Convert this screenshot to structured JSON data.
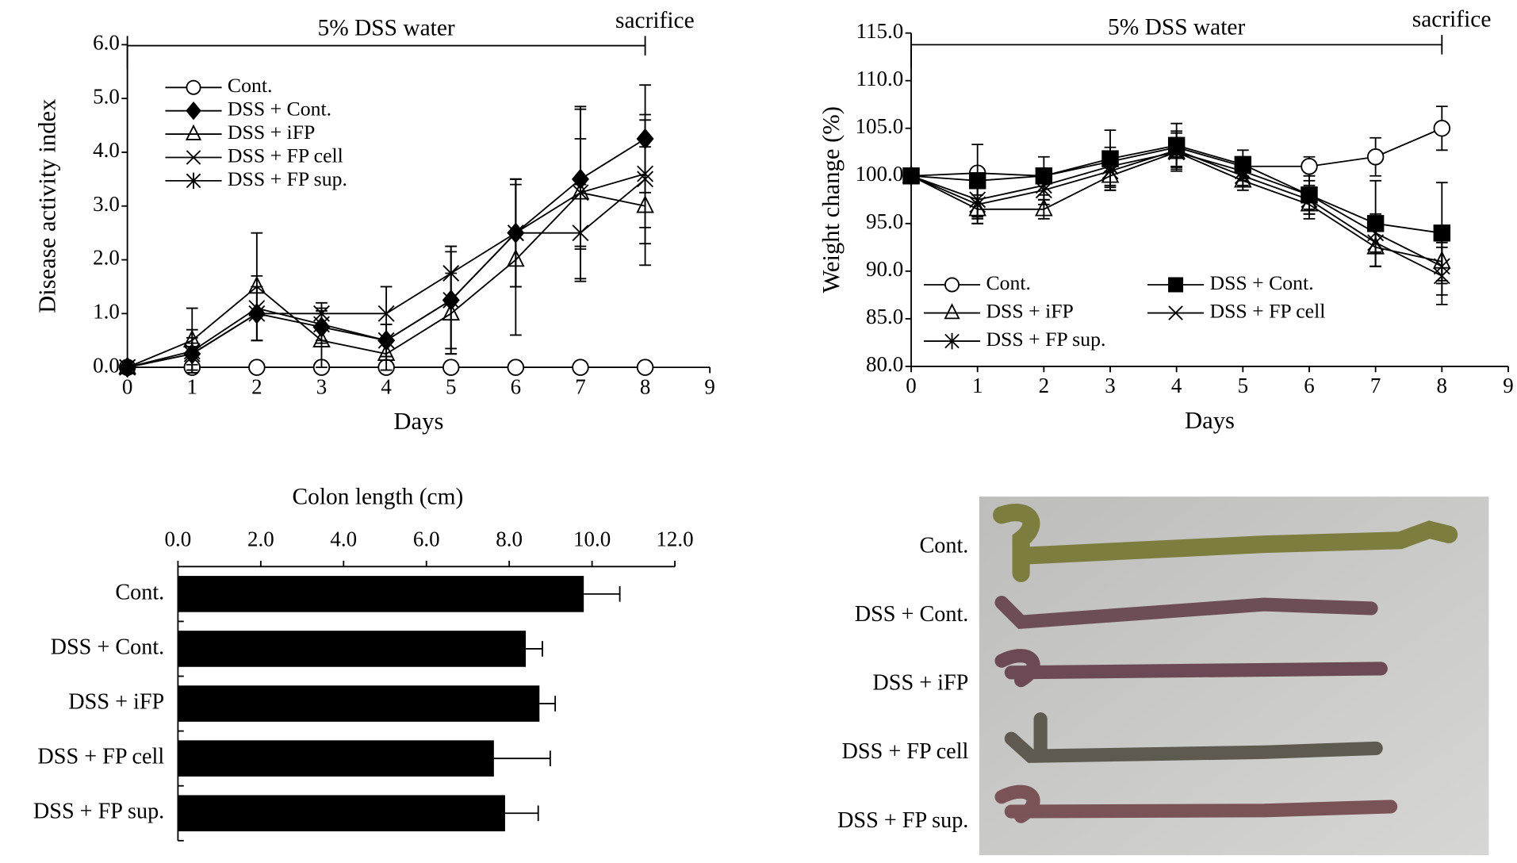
{
  "chart_data": [
    {
      "type": "line",
      "y_label": "Disease activity index",
      "x_label": "Days",
      "annotations": [
        "5% DSS water",
        "sacrifice"
      ],
      "period": [
        0,
        8
      ],
      "x": [
        0,
        1,
        2,
        3,
        4,
        5,
        6,
        7,
        8
      ],
      "xlim": [
        0,
        9
      ],
      "xticks": [
        0,
        1,
        2,
        3,
        4,
        5,
        6,
        7,
        8,
        9
      ],
      "ylim": [
        0,
        6
      ],
      "yticks": [
        {
          "value": 0,
          "label": "0.0"
        },
        {
          "value": 1,
          "label": "1.0"
        },
        {
          "value": 2,
          "label": "2.0"
        },
        {
          "value": 3,
          "label": "3.0"
        },
        {
          "value": 4,
          "label": "4.0"
        },
        {
          "value": 5,
          "label": "5.0"
        },
        {
          "value": 6,
          "label": "6.0"
        }
      ],
      "legend": "upper left",
      "legend_columns": 1,
      "series": [
        {
          "name": "Cont.",
          "color": "#000000",
          "marker": "open-circle",
          "values": [
            0,
            0,
            0,
            0,
            0,
            0,
            0,
            0,
            0
          ],
          "errors": [
            0,
            0,
            0,
            0,
            0,
            0,
            0,
            0,
            0
          ]
        },
        {
          "name": "DSS + Cont.",
          "color": "#000000",
          "marker": "filled-diamond",
          "values": [
            0,
            0.25,
            1.0,
            0.75,
            0.5,
            1.25,
            2.5,
            3.5,
            4.25
          ],
          "errors": [
            0,
            0.2,
            0.5,
            0.3,
            0.3,
            1.0,
            1.0,
            1.3,
            1.0
          ]
        },
        {
          "name": "DSS + iFP",
          "color": "#000000",
          "marker": "open-triangle",
          "values": [
            0,
            0.5,
            1.5,
            0.5,
            0.25,
            1.0,
            2.0,
            3.25,
            3.0
          ],
          "errors": [
            0,
            0.6,
            1.0,
            0.5,
            0.3,
            0.75,
            1.4,
            1.6,
            1.1
          ]
        },
        {
          "name": "DSS + FP cell",
          "color": "#000000",
          "marker": "x",
          "values": [
            0,
            0.25,
            1.0,
            1.0,
            1.0,
            1.75,
            2.5,
            2.5,
            3.5
          ],
          "errors": [
            0,
            0.3,
            0.5,
            0.2,
            0.5,
            0.5,
            1.0,
            0.9,
            1.2
          ]
        },
        {
          "name": "DSS + FP sup.",
          "color": "#000000",
          "marker": "star",
          "values": [
            0,
            0.3,
            1.1,
            0.8,
            0.5,
            1.25,
            2.5,
            3.25,
            3.6
          ],
          "errors": [
            0,
            0.4,
            0.6,
            0.3,
            0.3,
            0.9,
            1.0,
            1.0,
            1.0
          ]
        }
      ]
    },
    {
      "type": "line",
      "y_label": "Weight change (%)",
      "x_label": "Days",
      "annotations": [
        "5% DSS water",
        "sacrifice"
      ],
      "period": [
        0,
        8
      ],
      "x": [
        0,
        1,
        2,
        3,
        4,
        5,
        6,
        7,
        8
      ],
      "xlim": [
        0,
        9
      ],
      "xticks": [
        0,
        1,
        2,
        3,
        4,
        5,
        6,
        7,
        8,
        9
      ],
      "ylim": [
        80,
        115
      ],
      "yticks": [
        {
          "value": 80,
          "label": "80.0"
        },
        {
          "value": 85,
          "label": "85.0"
        },
        {
          "value": 90,
          "label": "90.0"
        },
        {
          "value": 95,
          "label": "95.0"
        },
        {
          "value": 100,
          "label": "100.0"
        },
        {
          "value": 105,
          "label": "105.0"
        },
        {
          "value": 110,
          "label": "110.0"
        },
        {
          "value": 115,
          "label": "115.0"
        }
      ],
      "legend": "lower left",
      "legend_columns": 2,
      "series": [
        {
          "name": "Cont.",
          "color": "#000000",
          "marker": "open-circle",
          "values": [
            100,
            100.3,
            100,
            101.5,
            103,
            101,
            101,
            102,
            105
          ],
          "errors": [
            0,
            0.5,
            0.5,
            1,
            1,
            1,
            1,
            2,
            2.3
          ]
        },
        {
          "name": "DSS + Cont.",
          "color": "#000000",
          "marker": "filled-square",
          "values": [
            100,
            99.5,
            100,
            101.8,
            103.2,
            101.2,
            98,
            95,
            94
          ],
          "errors": [
            0,
            3.8,
            2,
            3,
            2.3,
            1.5,
            2,
            4.5,
            5.3
          ]
        },
        {
          "name": "DSS + iFP",
          "color": "#000000",
          "marker": "open-triangle",
          "values": [
            100,
            96.5,
            96.5,
            100,
            102.5,
            99.5,
            97,
            92.5,
            91
          ],
          "errors": [
            0,
            1.5,
            1,
            1.5,
            1.5,
            1,
            1.5,
            2,
            2
          ]
        },
        {
          "name": "DSS + FP cell",
          "color": "#000000",
          "marker": "x",
          "values": [
            100,
            97,
            98.5,
            100.5,
            102.7,
            100,
            97.5,
            93,
            89.5
          ],
          "errors": [
            0,
            2,
            1.5,
            2,
            2,
            1,
            1.5,
            2.5,
            3
          ]
        },
        {
          "name": "DSS + FP sup.",
          "color": "#000000",
          "marker": "star",
          "values": [
            100,
            97.5,
            99,
            101,
            102.5,
            100.5,
            98,
            94,
            90.5
          ],
          "errors": [
            0,
            2,
            1.5,
            2,
            2,
            1,
            1.5,
            2,
            3
          ]
        }
      ]
    },
    {
      "type": "barh",
      "x_label": "Colon length (cm)",
      "categories": [
        "Cont.",
        "DSS + Cont.",
        "DSS + iFP",
        "DSS + FP cell",
        "DSS + FP sup."
      ],
      "values": [
        9.8,
        8.4,
        8.73,
        7.63,
        7.9
      ],
      "errors": [
        0.87,
        0.4,
        0.38,
        1.36,
        0.8
      ],
      "color": "#000000",
      "xlim": [
        0,
        12
      ],
      "xticks": [
        {
          "value": 0,
          "label": "0.0"
        },
        {
          "value": 2,
          "label": "2.0"
        },
        {
          "value": 4,
          "label": "4.0"
        },
        {
          "value": 6,
          "label": "6.0"
        },
        {
          "value": 8,
          "label": "8.0"
        },
        {
          "value": 10,
          "label": "10.0"
        },
        {
          "value": 12,
          "label": "12.0"
        }
      ]
    }
  ],
  "photo_panel": {
    "labels": [
      "Cont.",
      "DSS + Cont.",
      "DSS + iFP",
      "DSS + FP cell",
      "DSS + FP sup."
    ]
  }
}
